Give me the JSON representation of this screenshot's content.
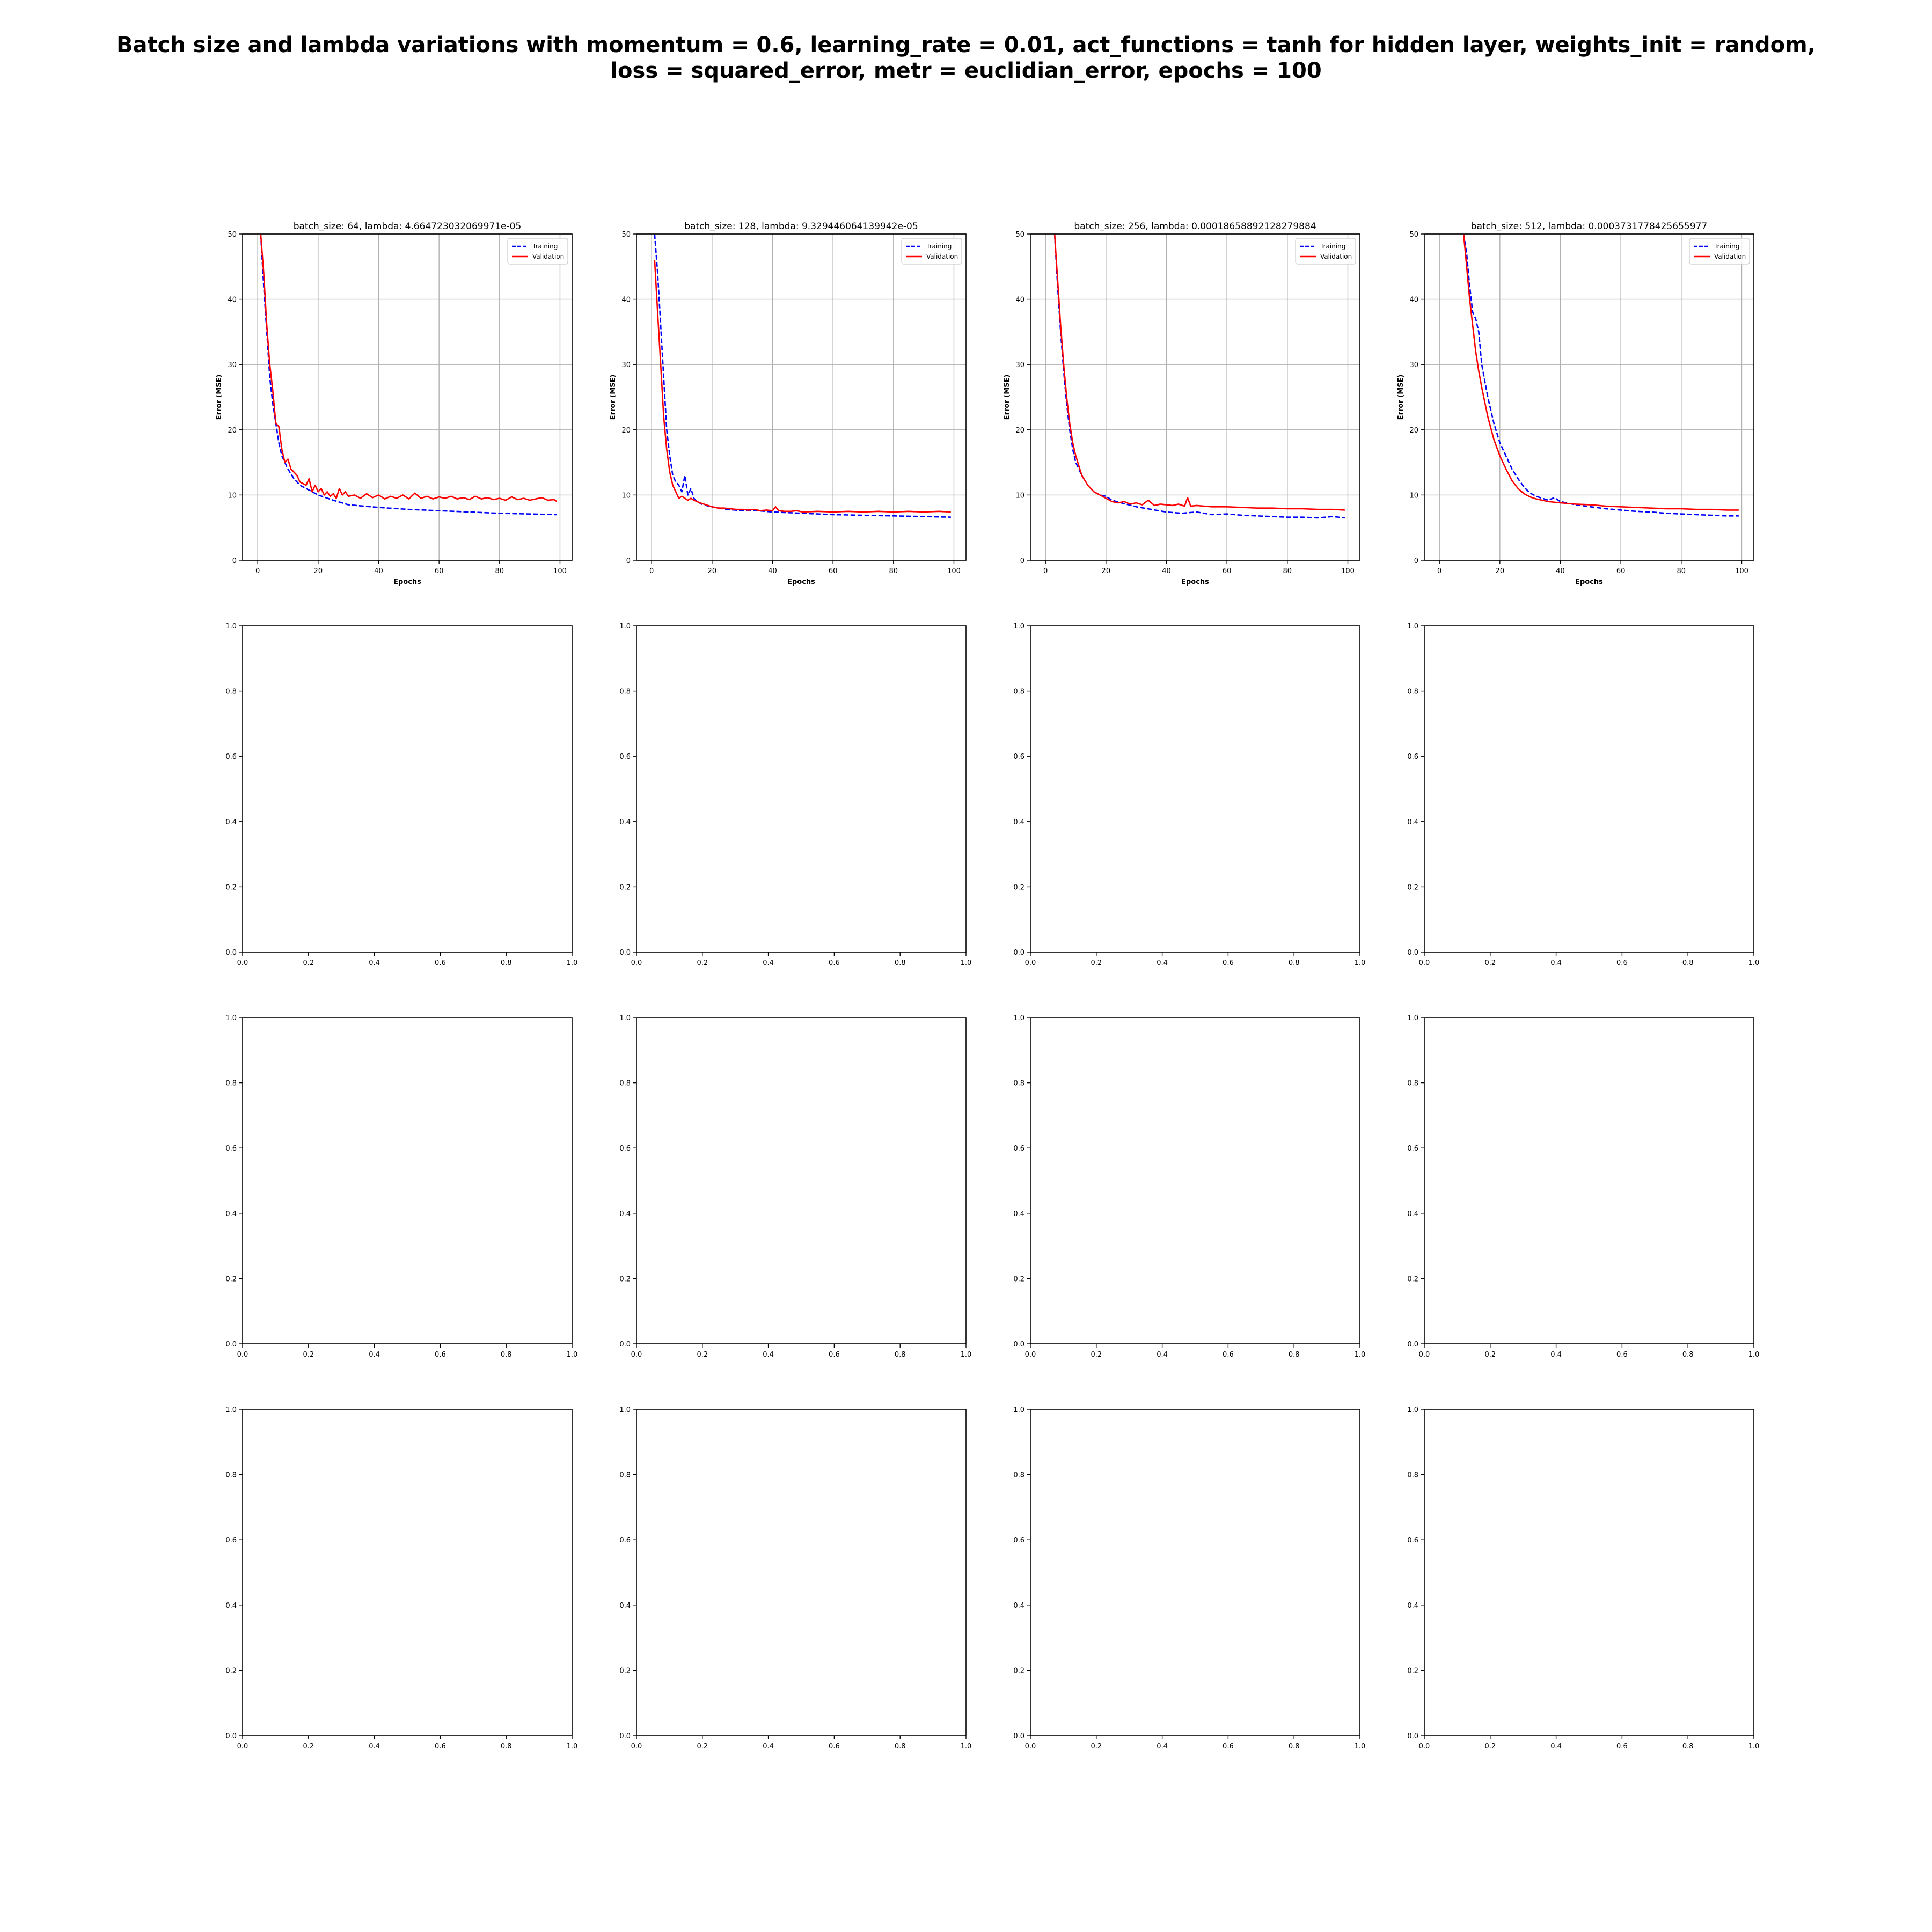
{
  "figure": {
    "title_lines": [
      "Batch size and lambda variations with momentum = 0.6, learning_rate = 0.01, act_functions = tanh for hidden layer, weights_init = random,",
      "loss = squared_error, metr = euclidian_error, epochs = 100"
    ],
    "colors": {
      "training": "#0000ff",
      "validation": "#ff0000",
      "grid": "#b0b0b0",
      "axes": "#000000"
    }
  },
  "chart_data": [
    {
      "type": "line",
      "title": "batch_size: 64, lambda: 4.664723032069971e-05",
      "xlabel": "Epochs",
      "ylabel": "Error (MSE)",
      "xlim": [
        -5,
        104
      ],
      "ylim": [
        0,
        50
      ],
      "xticks": [
        0,
        20,
        40,
        60,
        80,
        100
      ],
      "yticks": [
        0,
        10,
        20,
        30,
        40,
        50
      ],
      "grid": true,
      "legend": "top-right",
      "series": [
        {
          "name": "Training",
          "style": "dashed",
          "x": [
            1,
            2,
            3,
            4,
            5,
            6,
            7,
            8,
            10,
            12,
            14,
            16,
            18,
            20,
            25,
            30,
            40,
            50,
            60,
            70,
            80,
            90,
            99
          ],
          "y": [
            50,
            42,
            35,
            28,
            24,
            21,
            18,
            16,
            14,
            12.5,
            11.5,
            11,
            10.5,
            10,
            9.2,
            8.5,
            8.1,
            7.8,
            7.6,
            7.4,
            7.2,
            7.1,
            7.0
          ]
        },
        {
          "name": "Validation",
          "style": "solid",
          "x": [
            1,
            2,
            3,
            4,
            5,
            6,
            7,
            8,
            9,
            10,
            11,
            12,
            13,
            14,
            16,
            17,
            18,
            19,
            20,
            21,
            22,
            23,
            24,
            25,
            26,
            27,
            28,
            29,
            30,
            32,
            34,
            36,
            38,
            40,
            42,
            44,
            46,
            48,
            50,
            52,
            54,
            56,
            58,
            60,
            62,
            64,
            66,
            68,
            70,
            72,
            74,
            76,
            78,
            80,
            82,
            84,
            86,
            88,
            90,
            92,
            94,
            96,
            98,
            99
          ],
          "y": [
            50,
            44,
            36,
            30,
            26,
            21,
            20.5,
            17,
            15,
            15.5,
            14,
            13.5,
            13,
            12,
            11.5,
            12.5,
            10.5,
            11.5,
            10.5,
            11,
            10,
            10.5,
            9.8,
            10.2,
            9.5,
            11,
            10,
            10.5,
            9.8,
            10,
            9.5,
            10.2,
            9.6,
            10,
            9.4,
            9.8,
            9.5,
            10,
            9.4,
            10.3,
            9.5,
            9.8,
            9.4,
            9.7,
            9.5,
            9.8,
            9.4,
            9.6,
            9.3,
            9.8,
            9.4,
            9.6,
            9.3,
            9.5,
            9.2,
            9.7,
            9.3,
            9.5,
            9.2,
            9.4,
            9.6,
            9.2,
            9.3,
            9.0
          ]
        }
      ]
    },
    {
      "type": "line",
      "title": "batch_size: 128, lambda: 9.329446064139942e-05",
      "xlabel": "Epochs",
      "ylabel": "Error (MSE)",
      "xlim": [
        -5,
        104
      ],
      "ylim": [
        0,
        50
      ],
      "xticks": [
        0,
        20,
        40,
        60,
        80,
        100
      ],
      "yticks": [
        0,
        10,
        20,
        30,
        40,
        50
      ],
      "grid": true,
      "legend": "top-right",
      "series": [
        {
          "name": "Training",
          "style": "dashed",
          "x": [
            1,
            2,
            3,
            4,
            5,
            6,
            7,
            8,
            9,
            10,
            11,
            12,
            13,
            14,
            15,
            17,
            20,
            25,
            30,
            35,
            40,
            45,
            50,
            60,
            70,
            80,
            90,
            99
          ],
          "y": [
            50,
            44,
            36,
            28,
            20,
            16,
            13,
            12,
            11.5,
            10.5,
            13,
            10,
            11,
            9.5,
            9,
            8.5,
            8.2,
            7.8,
            7.6,
            7.6,
            7.4,
            7.3,
            7.2,
            7.0,
            6.9,
            6.8,
            6.7,
            6.6
          ]
        },
        {
          "name": "Validation",
          "style": "solid",
          "x": [
            1,
            2,
            3,
            4,
            5,
            6,
            7,
            8,
            9,
            10,
            11,
            12,
            13,
            14,
            15,
            16,
            18,
            20,
            22,
            24,
            26,
            28,
            30,
            32,
            34,
            36,
            38,
            40,
            41,
            42,
            44,
            46,
            48,
            50,
            55,
            60,
            65,
            70,
            75,
            80,
            85,
            90,
            95,
            99
          ],
          "y": [
            46,
            38,
            30,
            22,
            17,
            13.5,
            11.5,
            10.5,
            9.5,
            9.8,
            9.5,
            9.2,
            9.5,
            9.2,
            9,
            8.8,
            8.5,
            8.2,
            8,
            8,
            7.9,
            7.8,
            7.8,
            7.7,
            7.8,
            7.6,
            7.7,
            7.6,
            8.2,
            7.6,
            7.5,
            7.5,
            7.6,
            7.4,
            7.5,
            7.4,
            7.5,
            7.4,
            7.5,
            7.4,
            7.5,
            7.4,
            7.5,
            7.4
          ]
        }
      ]
    },
    {
      "type": "line",
      "title": "batch_size: 256, lambda: 0.00018658892128279884",
      "xlabel": "Epochs",
      "ylabel": "Error (MSE)",
      "xlim": [
        -5,
        104
      ],
      "ylim": [
        0,
        50
      ],
      "xticks": [
        0,
        20,
        40,
        60,
        80,
        100
      ],
      "yticks": [
        0,
        10,
        20,
        30,
        40,
        50
      ],
      "grid": true,
      "legend": "top-right",
      "series": [
        {
          "name": "Training",
          "style": "dashed",
          "x": [
            3,
            4,
            5,
            6,
            7,
            8,
            9,
            10,
            12,
            14,
            16,
            18,
            20,
            22,
            25,
            30,
            35,
            40,
            45,
            50,
            55,
            60,
            65,
            70,
            75,
            80,
            85,
            90,
            95,
            99
          ],
          "y": [
            50,
            42,
            35,
            29,
            24,
            20,
            17,
            15,
            13,
            11.5,
            10.5,
            10,
            9.8,
            9.2,
            8.8,
            8.2,
            7.8,
            7.4,
            7.2,
            7.4,
            7.0,
            7.1,
            6.9,
            6.8,
            6.7,
            6.6,
            6.6,
            6.5,
            6.7,
            6.5
          ]
        },
        {
          "name": "Validation",
          "style": "solid",
          "x": [
            3,
            4,
            5,
            6,
            7,
            8,
            9,
            10,
            12,
            14,
            16,
            18,
            20,
            22,
            24,
            26,
            28,
            30,
            32,
            34,
            36,
            38,
            40,
            42,
            44,
            46,
            47,
            48,
            50,
            55,
            60,
            65,
            70,
            75,
            80,
            85,
            90,
            95,
            99
          ],
          "y": [
            50,
            43,
            36,
            30,
            25,
            21,
            18,
            16,
            13,
            11.5,
            10.5,
            10,
            9.5,
            9,
            8.8,
            9,
            8.6,
            8.8,
            8.5,
            9.2,
            8.4,
            8.6,
            8.5,
            8.4,
            8.6,
            8.3,
            9.6,
            8.3,
            8.4,
            8.2,
            8.2,
            8.1,
            8.0,
            8.0,
            7.9,
            7.9,
            7.8,
            7.8,
            7.7
          ]
        }
      ]
    },
    {
      "type": "line",
      "title": "batch_size: 512, lambda: 0.0003731778425655977",
      "xlabel": "Epochs",
      "ylabel": "Error (MSE)",
      "xlim": [
        -5,
        104
      ],
      "ylim": [
        0,
        50
      ],
      "xticks": [
        0,
        20,
        40,
        60,
        80,
        100
      ],
      "yticks": [
        0,
        10,
        20,
        30,
        40,
        50
      ],
      "grid": true,
      "legend": "top-right",
      "series": [
        {
          "name": "Training",
          "style": "dashed",
          "x": [
            8,
            9,
            10,
            11,
            12,
            13,
            14,
            16,
            18,
            20,
            22,
            24,
            26,
            28,
            30,
            32,
            34,
            36,
            38,
            40,
            45,
            50,
            55,
            60,
            65,
            70,
            75,
            80,
            85,
            90,
            95,
            99
          ],
          "y": [
            50,
            47,
            42,
            38,
            37,
            35,
            30,
            25,
            21,
            18,
            16,
            14,
            12.5,
            11.2,
            10.3,
            9.8,
            9.5,
            9.2,
            9.6,
            9.0,
            8.5,
            8.2,
            7.9,
            7.7,
            7.5,
            7.4,
            7.2,
            7.1,
            7.0,
            6.9,
            6.8,
            6.8
          ]
        },
        {
          "name": "Validation",
          "style": "solid",
          "x": [
            8,
            9,
            10,
            11,
            12,
            13,
            14,
            16,
            18,
            20,
            22,
            24,
            26,
            28,
            30,
            32,
            34,
            36,
            38,
            40,
            45,
            50,
            55,
            60,
            65,
            70,
            75,
            80,
            85,
            90,
            95,
            99
          ],
          "y": [
            50,
            45,
            40,
            36,
            32,
            29,
            26.5,
            22,
            18.5,
            16,
            14,
            12.2,
            11,
            10.2,
            9.7,
            9.4,
            9.2,
            9.0,
            8.9,
            8.8,
            8.6,
            8.5,
            8.3,
            8.2,
            8.1,
            8.0,
            7.9,
            7.9,
            7.8,
            7.8,
            7.7,
            7.7
          ]
        }
      ]
    },
    {
      "type": "line",
      "title": "",
      "xlim": [
        0,
        1
      ],
      "ylim": [
        0,
        1
      ],
      "xticks": [
        "0.0",
        "0.2",
        "0.4",
        "0.6",
        "0.8",
        "1.0"
      ],
      "yticks": [
        "0.0",
        "0.2",
        "0.4",
        "0.6",
        "0.8",
        "1.0"
      ],
      "grid": false,
      "series": []
    },
    {
      "type": "line",
      "title": "",
      "xlim": [
        0,
        1
      ],
      "ylim": [
        0,
        1
      ],
      "xticks": [
        "0.0",
        "0.2",
        "0.4",
        "0.6",
        "0.8",
        "1.0"
      ],
      "yticks": [
        "0.0",
        "0.2",
        "0.4",
        "0.6",
        "0.8",
        "1.0"
      ],
      "grid": false,
      "series": []
    },
    {
      "type": "line",
      "title": "",
      "xlim": [
        0,
        1
      ],
      "ylim": [
        0,
        1
      ],
      "xticks": [
        "0.0",
        "0.2",
        "0.4",
        "0.6",
        "0.8",
        "1.0"
      ],
      "yticks": [
        "0.0",
        "0.2",
        "0.4",
        "0.6",
        "0.8",
        "1.0"
      ],
      "grid": false,
      "series": []
    },
    {
      "type": "line",
      "title": "",
      "xlim": [
        0,
        1
      ],
      "ylim": [
        0,
        1
      ],
      "xticks": [
        "0.0",
        "0.2",
        "0.4",
        "0.6",
        "0.8",
        "1.0"
      ],
      "yticks": [
        "0.0",
        "0.2",
        "0.4",
        "0.6",
        "0.8",
        "1.0"
      ],
      "grid": false,
      "series": []
    },
    {
      "type": "line",
      "title": "",
      "xlim": [
        0,
        1
      ],
      "ylim": [
        0,
        1
      ],
      "xticks": [
        "0.0",
        "0.2",
        "0.4",
        "0.6",
        "0.8",
        "1.0"
      ],
      "yticks": [
        "0.0",
        "0.2",
        "0.4",
        "0.6",
        "0.8",
        "1.0"
      ],
      "grid": false,
      "series": []
    },
    {
      "type": "line",
      "title": "",
      "xlim": [
        0,
        1
      ],
      "ylim": [
        0,
        1
      ],
      "xticks": [
        "0.0",
        "0.2",
        "0.4",
        "0.6",
        "0.8",
        "1.0"
      ],
      "yticks": [
        "0.0",
        "0.2",
        "0.4",
        "0.6",
        "0.8",
        "1.0"
      ],
      "grid": false,
      "series": []
    },
    {
      "type": "line",
      "title": "",
      "xlim": [
        0,
        1
      ],
      "ylim": [
        0,
        1
      ],
      "xticks": [
        "0.0",
        "0.2",
        "0.4",
        "0.6",
        "0.8",
        "1.0"
      ],
      "yticks": [
        "0.0",
        "0.2",
        "0.4",
        "0.6",
        "0.8",
        "1.0"
      ],
      "grid": false,
      "series": []
    },
    {
      "type": "line",
      "title": "",
      "xlim": [
        0,
        1
      ],
      "ylim": [
        0,
        1
      ],
      "xticks": [
        "0.0",
        "0.2",
        "0.4",
        "0.6",
        "0.8",
        "1.0"
      ],
      "yticks": [
        "0.0",
        "0.2",
        "0.4",
        "0.6",
        "0.8",
        "1.0"
      ],
      "grid": false,
      "series": []
    },
    {
      "type": "line",
      "title": "",
      "xlim": [
        0,
        1
      ],
      "ylim": [
        0,
        1
      ],
      "xticks": [
        "0.0",
        "0.2",
        "0.4",
        "0.6",
        "0.8",
        "1.0"
      ],
      "yticks": [
        "0.0",
        "0.2",
        "0.4",
        "0.6",
        "0.8",
        "1.0"
      ],
      "grid": false,
      "series": []
    },
    {
      "type": "line",
      "title": "",
      "xlim": [
        0,
        1
      ],
      "ylim": [
        0,
        1
      ],
      "xticks": [
        "0.0",
        "0.2",
        "0.4",
        "0.6",
        "0.8",
        "1.0"
      ],
      "yticks": [
        "0.0",
        "0.2",
        "0.4",
        "0.6",
        "0.8",
        "1.0"
      ],
      "grid": false,
      "series": []
    },
    {
      "type": "line",
      "title": "",
      "xlim": [
        0,
        1
      ],
      "ylim": [
        0,
        1
      ],
      "xticks": [
        "0.0",
        "0.2",
        "0.4",
        "0.6",
        "0.8",
        "1.0"
      ],
      "yticks": [
        "0.0",
        "0.2",
        "0.4",
        "0.6",
        "0.8",
        "1.0"
      ],
      "grid": false,
      "series": []
    },
    {
      "type": "line",
      "title": "",
      "xlim": [
        0,
        1
      ],
      "ylim": [
        0,
        1
      ],
      "xticks": [
        "0.0",
        "0.2",
        "0.4",
        "0.6",
        "0.8",
        "1.0"
      ],
      "yticks": [
        "0.0",
        "0.2",
        "0.4",
        "0.6",
        "0.8",
        "1.0"
      ],
      "grid": false,
      "series": []
    }
  ]
}
